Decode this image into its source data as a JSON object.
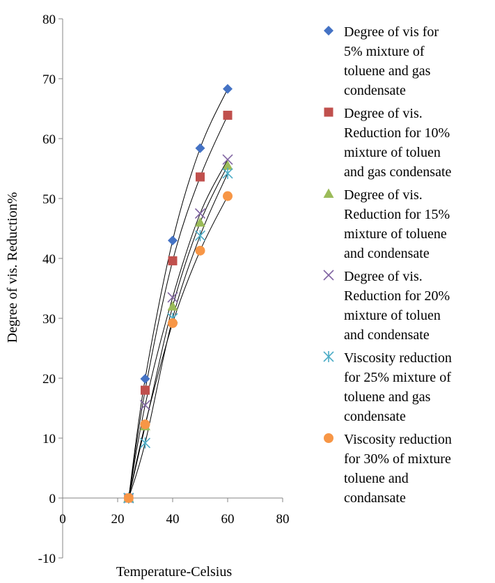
{
  "chart_data": {
    "type": "scatter",
    "xlabel": "Temperature-Celsius",
    "ylabel": "Degree of vis. Reduction%",
    "xlim": [
      0,
      80
    ],
    "ylim": [
      -10,
      80
    ],
    "xticks": [
      "0",
      "20",
      "40",
      "60",
      "80"
    ],
    "yticks": [
      "-10",
      "0",
      "10",
      "20",
      "30",
      "40",
      "50",
      "60",
      "70",
      "80"
    ],
    "grid": false,
    "legend": "right",
    "trendlines": true,
    "series": [
      {
        "name": "Degree of vis for 5% mixture of toluene and gas condensate",
        "legend_lines": [
          "Degree of vis for",
          "5% mixture of",
          "toluene and gas",
          "condensate"
        ],
        "marker": "diamond",
        "color": "#4472C4",
        "x": [
          24,
          30,
          40,
          50,
          60
        ],
        "y": [
          0,
          19.9,
          43,
          58.4,
          68.3
        ]
      },
      {
        "name": "Degree of vis. Reduction for 10% mixture of toluen and gas condensate",
        "legend_lines": [
          "Degree of vis.",
          "Reduction for 10%",
          "mixture of toluen",
          "and gas condensate"
        ],
        "marker": "square",
        "color": "#C0504D",
        "x": [
          24,
          30,
          40,
          50,
          60
        ],
        "y": [
          0,
          18,
          39.6,
          53.6,
          63.9
        ]
      },
      {
        "name": "Degree of vis. Reduction for 15% mixture of toluene and condensate",
        "legend_lines": [
          "Degree of vis.",
          "Reduction for 15%",
          "mixture of toluene",
          "and condensate"
        ],
        "marker": "triangle",
        "color": "#9BBB59",
        "x": [
          24,
          30,
          40,
          50,
          60
        ],
        "y": [
          0,
          12,
          32,
          46,
          55.5
        ]
      },
      {
        "name": "Degree of vis. Reduction for 20% mixture of toluen and condensate",
        "legend_lines": [
          "Degree of vis.",
          "Reduction for 20%",
          "mixture of toluen",
          "and condensate"
        ],
        "marker": "x",
        "color": "#8064A2",
        "x": [
          24,
          30,
          40,
          50,
          60
        ],
        "y": [
          0,
          15.5,
          33.5,
          47.5,
          56.5
        ]
      },
      {
        "name": "Viscosity reduction for 25% mixture of toluene and gas condensate",
        "legend_lines": [
          "Viscosity reduction",
          "for 25% mixture of",
          "toluene and gas",
          "condensate"
        ],
        "marker": "star",
        "color": "#4BACC6",
        "x": [
          24,
          30,
          40,
          50,
          60
        ],
        "y": [
          0,
          9.2,
          30,
          43.8,
          54.2
        ]
      },
      {
        "name": "Viscosity reduction for 30% of mixture toluene and condansate",
        "legend_lines": [
          "Viscosity reduction",
          "for 30% of mixture",
          "toluene and",
          "condansate"
        ],
        "marker": "circle",
        "color": "#F79646",
        "x": [
          24,
          30,
          40,
          50,
          60
        ],
        "y": [
          0,
          12.3,
          29.2,
          41.3,
          50.4
        ]
      }
    ]
  }
}
